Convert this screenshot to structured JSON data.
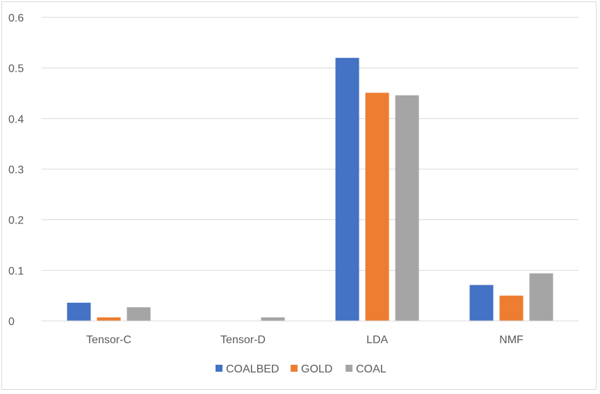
{
  "chart_data": {
    "type": "bar",
    "categories": [
      "Tensor-C",
      "Tensor-D",
      "LDA",
      "NMF"
    ],
    "series": [
      {
        "name": "COALBED",
        "color": "#4472c4",
        "values": [
          0.036,
          0.0,
          0.52,
          0.071
        ]
      },
      {
        "name": "GOLD",
        "color": "#ed7d31",
        "values": [
          0.007,
          0.0,
          0.451,
          0.05
        ]
      },
      {
        "name": "COAL",
        "color": "#a5a5a5",
        "values": [
          0.027,
          0.007,
          0.446,
          0.094
        ]
      }
    ],
    "yticks": [
      "0",
      "0.1",
      "0.2",
      "0.3",
      "0.4",
      "0.5",
      "0.6"
    ],
    "ylim": [
      0,
      0.6
    ],
    "grid": true,
    "legend_position": "bottom"
  }
}
